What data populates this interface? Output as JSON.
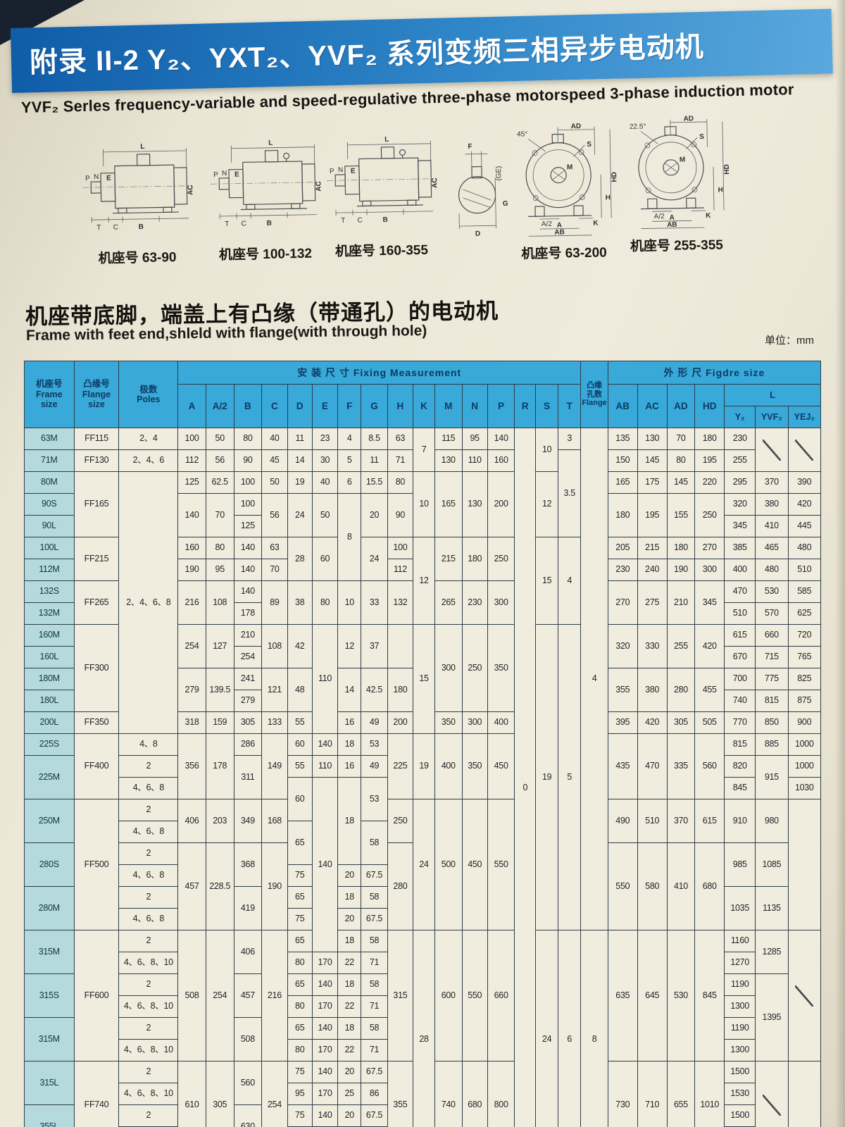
{
  "page": {
    "title": "附录 II-2 Y₂、YXT₂、YVF₂ 系列变频三相异步电动机",
    "subtitle": "YVF₂ Serles frequency-variable and speed-regulative three-phase motorspeed 3-phase induction motor",
    "section_heading_cn": "机座带底脚，端盖上有凸缘（带通孔）的电动机",
    "section_heading_en": "Frame with feet end,shleld with flange(with through hole)",
    "unit_label": "单位：mm"
  },
  "colors": {
    "banner_start": "#0f5ca8",
    "banner_end": "#5aa8dd",
    "table_header_bg": "#38a9d9",
    "frame_cell_bg": "#b5dade",
    "data_cell_bg": "#f1edde",
    "paper": "#eae5d6"
  },
  "diagrams": {
    "captions": [
      "机座号 63-90",
      "机座号 100-132",
      "机座号 160-355",
      "机座号 63-200",
      "机座号 255-355"
    ],
    "side_labels": {
      "L": "L",
      "AC": "AC",
      "P": "P",
      "N": "N",
      "E": "E",
      "T": "T",
      "C": "C",
      "B": "B"
    },
    "shaft_labels": {
      "F": "F",
      "GE": "(GE)",
      "G": "G",
      "D": "D"
    },
    "front_labels": {
      "AD": "AD",
      "S": "S",
      "M": "M",
      "HD": "HD",
      "H": "H",
      "A2": "A/2",
      "K": "K",
      "A": "A",
      "AB": "AB"
    },
    "front_angles": [
      "45°",
      "22.5°"
    ]
  },
  "table": {
    "header": {
      "frame": "机座号\nFrame\nsize",
      "flange": "凸缘号\nFlange\nsize",
      "poles": "极数\nPoles",
      "fixing": "安    装    尺    寸  Fixing Measurement",
      "holes": "凸缘\n孔数\nFlange",
      "outer": "外    形    尺   Figdre size",
      "letters": [
        "A",
        "A/2",
        "B",
        "C",
        "D",
        "E",
        "F",
        "G",
        "H",
        "K",
        "M",
        "N",
        "P",
        "R",
        "S",
        "T"
      ],
      "outer_letters": [
        "AB",
        "AC",
        "AD",
        "HD"
      ],
      "L": "L",
      "L_sub": [
        "Y₂",
        "YVF₂",
        "YEJ₂"
      ]
    },
    "rows": [
      [
        [
          "63M",
          1,
          "f"
        ],
        "FF115",
        "2、4",
        "100",
        "50",
        "80",
        "40",
        "11",
        "23",
        "4",
        "8.5",
        "63",
        [
          "7",
          2
        ],
        "115",
        "95",
        "140",
        [
          "0",
          33
        ],
        [
          "10",
          2
        ],
        "3",
        [
          "4",
          23
        ],
        "135",
        "130",
        "70",
        "180",
        "230",
        [
          "",
          2,
          "s"
        ],
        [
          "",
          2,
          "s"
        ]
      ],
      [
        [
          "71M",
          1,
          "f"
        ],
        "FF130",
        "2、4、6",
        "112",
        "56",
        "90",
        "45",
        "14",
        "30",
        "5",
        "11",
        "71",
        "130",
        "110",
        "160",
        [
          "3.5",
          4
        ],
        "150",
        "145",
        "80",
        "195",
        "255"
      ],
      [
        [
          "80M",
          1,
          "f"
        ],
        [
          "FF165",
          3
        ],
        [
          "2、4、6、8",
          12
        ],
        "125",
        "62.5",
        "100",
        "50",
        "19",
        "40",
        "6",
        "15.5",
        "80",
        [
          "10",
          3
        ],
        [
          "165",
          3
        ],
        [
          "130",
          3
        ],
        [
          "200",
          3
        ],
        [
          "12",
          3
        ],
        "165",
        "175",
        "145",
        "220",
        "295",
        "370",
        "390"
      ],
      [
        [
          "90S",
          1,
          "f"
        ],
        [
          "140",
          2
        ],
        [
          "70",
          2
        ],
        "100",
        [
          "56",
          2
        ],
        [
          "24",
          2
        ],
        [
          "50",
          2
        ],
        [
          "8",
          4
        ],
        [
          "20",
          2
        ],
        [
          "90",
          2
        ],
        [
          "180",
          2
        ],
        [
          "195",
          2
        ],
        [
          "155",
          2
        ],
        [
          "250",
          2
        ],
        "320",
        "380",
        "420"
      ],
      [
        [
          "90L",
          1,
          "f"
        ],
        "125",
        "345",
        "410",
        "445"
      ],
      [
        [
          "100L",
          1,
          "f"
        ],
        [
          "FF215",
          2
        ],
        "160",
        "80",
        "140",
        "63",
        [
          "28",
          2
        ],
        [
          "60",
          2
        ],
        [
          "24",
          2
        ],
        "100",
        [
          "12",
          4
        ],
        [
          "215",
          2
        ],
        [
          "180",
          2
        ],
        [
          "250",
          2
        ],
        [
          "15",
          4
        ],
        [
          "4",
          4
        ],
        "205",
        "215",
        "180",
        "270",
        "385",
        "465",
        "480"
      ],
      [
        [
          "112M",
          1,
          "f"
        ],
        "190",
        "95",
        "140",
        "70",
        "112",
        "230",
        "240",
        "190",
        "300",
        "400",
        "480",
        "510"
      ],
      [
        [
          "132S",
          1,
          "f"
        ],
        [
          "FF265",
          2
        ],
        [
          "216",
          2
        ],
        [
          "108",
          2
        ],
        "140",
        [
          "89",
          2
        ],
        [
          "38",
          2
        ],
        [
          "80",
          2
        ],
        [
          "10",
          2
        ],
        [
          "33",
          2
        ],
        [
          "132",
          2
        ],
        [
          "265",
          2
        ],
        [
          "230",
          2
        ],
        [
          "300",
          2
        ],
        [
          "270",
          2
        ],
        [
          "275",
          2
        ],
        [
          "210",
          2
        ],
        [
          "345",
          2
        ],
        "470",
        "530",
        "585"
      ],
      [
        [
          "132M",
          1,
          "f"
        ],
        "178",
        "510",
        "570",
        "625"
      ],
      [
        [
          "160M",
          1,
          "f"
        ],
        [
          "FF300",
          4
        ],
        [
          "254",
          2
        ],
        [
          "127",
          2
        ],
        "210",
        [
          "108",
          2
        ],
        [
          "42",
          2
        ],
        [
          "110",
          5
        ],
        [
          "12",
          2
        ],
        [
          "37",
          2
        ],
        [
          "",
          2
        ],
        [
          "15",
          5
        ],
        [
          "300",
          4
        ],
        [
          "250",
          4
        ],
        [
          "350",
          4
        ],
        [
          "19",
          14
        ],
        [
          "5",
          14
        ],
        [
          "320",
          2
        ],
        [
          "330",
          2
        ],
        [
          "255",
          2
        ],
        [
          "420",
          2
        ],
        "615",
        "660",
        "720"
      ],
      [
        [
          "160L",
          1,
          "f"
        ],
        "254",
        "670",
        "715",
        "765"
      ],
      [
        [
          "180M",
          1,
          "f"
        ],
        [
          "279",
          2
        ],
        [
          "139.5",
          2
        ],
        "241",
        [
          "121",
          2
        ],
        [
          "48",
          2
        ],
        [
          "14",
          2
        ],
        [
          "42.5",
          2
        ],
        [
          "180",
          2
        ],
        [
          "355",
          2
        ],
        [
          "380",
          2
        ],
        [
          "280",
          2
        ],
        [
          "455",
          2
        ],
        "700",
        "775",
        "825"
      ],
      [
        [
          "180L",
          1,
          "f"
        ],
        "279",
        "740",
        "815",
        "875"
      ],
      [
        [
          "200L",
          1,
          "f"
        ],
        "FF350",
        "318",
        "159",
        "305",
        "133",
        "55",
        "16",
        "49",
        "200",
        "350",
        "300",
        "400",
        "395",
        "420",
        "305",
        "505",
        "770",
        "850",
        "900"
      ],
      [
        [
          "225S",
          1,
          "f"
        ],
        [
          "FF400",
          3
        ],
        "4、8",
        [
          "356",
          3
        ],
        [
          "178",
          3
        ],
        "286",
        [
          "149",
          3
        ],
        "60",
        "140",
        "18",
        "53",
        [
          "225",
          3
        ],
        [
          "19",
          3
        ],
        [
          "400",
          3
        ],
        [
          "350",
          3
        ],
        [
          "450",
          3
        ],
        [
          "435",
          3
        ],
        [
          "470",
          3
        ],
        [
          "335",
          3
        ],
        [
          "560",
          3
        ],
        "815",
        "885",
        "1000"
      ],
      [
        [
          "225M",
          2,
          "f"
        ],
        "2",
        [
          "311",
          2
        ],
        "55",
        "110",
        "16",
        "49",
        "820",
        [
          "915",
          2
        ],
        "1000"
      ],
      [
        "4、6、8",
        [
          "60",
          2
        ],
        [
          "140",
          8
        ],
        [
          "18",
          4
        ],
        [
          "53",
          2
        ],
        "845",
        "1030"
      ],
      [
        [
          "250M",
          2,
          "f"
        ],
        [
          "FF500",
          6
        ],
        "2",
        [
          "406",
          2
        ],
        [
          "203",
          2
        ],
        [
          "349",
          2
        ],
        [
          "168",
          2
        ],
        [
          "250",
          2
        ],
        [
          "24",
          6
        ],
        [
          "500",
          6
        ],
        [
          "450",
          6
        ],
        [
          "550",
          6
        ],
        [
          "490",
          2
        ],
        [
          "510",
          2
        ],
        [
          "370",
          2
        ],
        [
          "615",
          2
        ],
        [
          "910",
          2
        ],
        [
          "980",
          2
        ],
        [
          "",
          6
        ]
      ],
      [
        "4、6、8",
        [
          "65",
          2
        ],
        [
          "58",
          2
        ]
      ],
      [
        [
          "280S",
          2,
          "f"
        ],
        "2",
        [
          "457",
          4
        ],
        [
          "228.5",
          4
        ],
        [
          "368",
          2
        ],
        [
          "190",
          4
        ],
        [
          "280",
          4
        ],
        [
          "550",
          4
        ],
        [
          "580",
          4
        ],
        [
          "410",
          4
        ],
        [
          "680",
          4
        ],
        [
          "985",
          2
        ],
        [
          "1085",
          2
        ]
      ],
      [
        "4、6、8",
        "75",
        "20",
        "67.5"
      ],
      [
        [
          "280M",
          2,
          "f"
        ],
        "2",
        [
          "419",
          2
        ],
        "65",
        "18",
        "58",
        [
          "1035",
          2
        ],
        [
          "1135",
          2
        ]
      ],
      [
        "4、6、8",
        "75",
        "20",
        "67.5"
      ],
      [
        [
          "315M",
          2,
          "f"
        ],
        [
          "FF600",
          6
        ],
        "2",
        [
          "508",
          6
        ],
        [
          "254",
          6
        ],
        [
          "406",
          2
        ],
        [
          "216",
          6
        ],
        "65",
        "18",
        "58",
        [
          "315",
          6
        ],
        [
          "28",
          10
        ],
        [
          "600",
          6
        ],
        [
          "550",
          6
        ],
        [
          "660",
          6
        ],
        [
          "24",
          10
        ],
        [
          "6",
          10
        ],
        [
          "8",
          10
        ],
        [
          "635",
          6
        ],
        [
          "645",
          6
        ],
        [
          "530",
          6
        ],
        [
          "845",
          6
        ],
        "1160",
        [
          "1285",
          2
        ],
        [
          "",
          6,
          "s"
        ]
      ],
      [
        "4、6、8、10",
        "80",
        "170",
        "22",
        "71",
        "1270"
      ],
      [
        [
          "315S",
          2,
          "f"
        ],
        "2",
        [
          "457",
          2
        ],
        "65",
        "140",
        "18",
        "58",
        "1190",
        [
          "1395",
          4
        ]
      ],
      [
        "4、6、8、10",
        "80",
        "170",
        "22",
        "71",
        "1300"
      ],
      [
        [
          "315M",
          2,
          "f"
        ],
        "2",
        [
          "508",
          2
        ],
        "65",
        "140",
        "18",
        "58",
        "1190"
      ],
      [
        "4、6、8、10",
        "80",
        "170",
        "22",
        "71",
        "1300"
      ],
      [
        [
          "315L",
          2,
          "f"
        ],
        [
          "FF740",
          4
        ],
        "2",
        [
          "610",
          4
        ],
        [
          "305",
          4
        ],
        [
          "560",
          2
        ],
        [
          "254",
          4
        ],
        "75",
        "140",
        "20",
        "67.5",
        [
          "355",
          4
        ],
        [
          "740",
          4
        ],
        [
          "680",
          4
        ],
        [
          "800",
          4
        ],
        [
          "730",
          4
        ],
        [
          "710",
          4
        ],
        [
          "655",
          4
        ],
        [
          "1010",
          4
        ],
        "1500",
        [
          "",
          4,
          "s"
        ],
        [
          "",
          4
        ]
      ],
      [
        "4、6、8、10",
        "95",
        "170",
        "25",
        "86",
        "1530"
      ],
      [
        [
          "355L",
          2,
          "f"
        ],
        "2",
        [
          "630",
          2
        ],
        "75",
        "140",
        "20",
        "67.5",
        "1500"
      ],
      [
        "4、6、8、10",
        "95",
        "170",
        "25",
        "86",
        "1530"
      ]
    ]
  }
}
